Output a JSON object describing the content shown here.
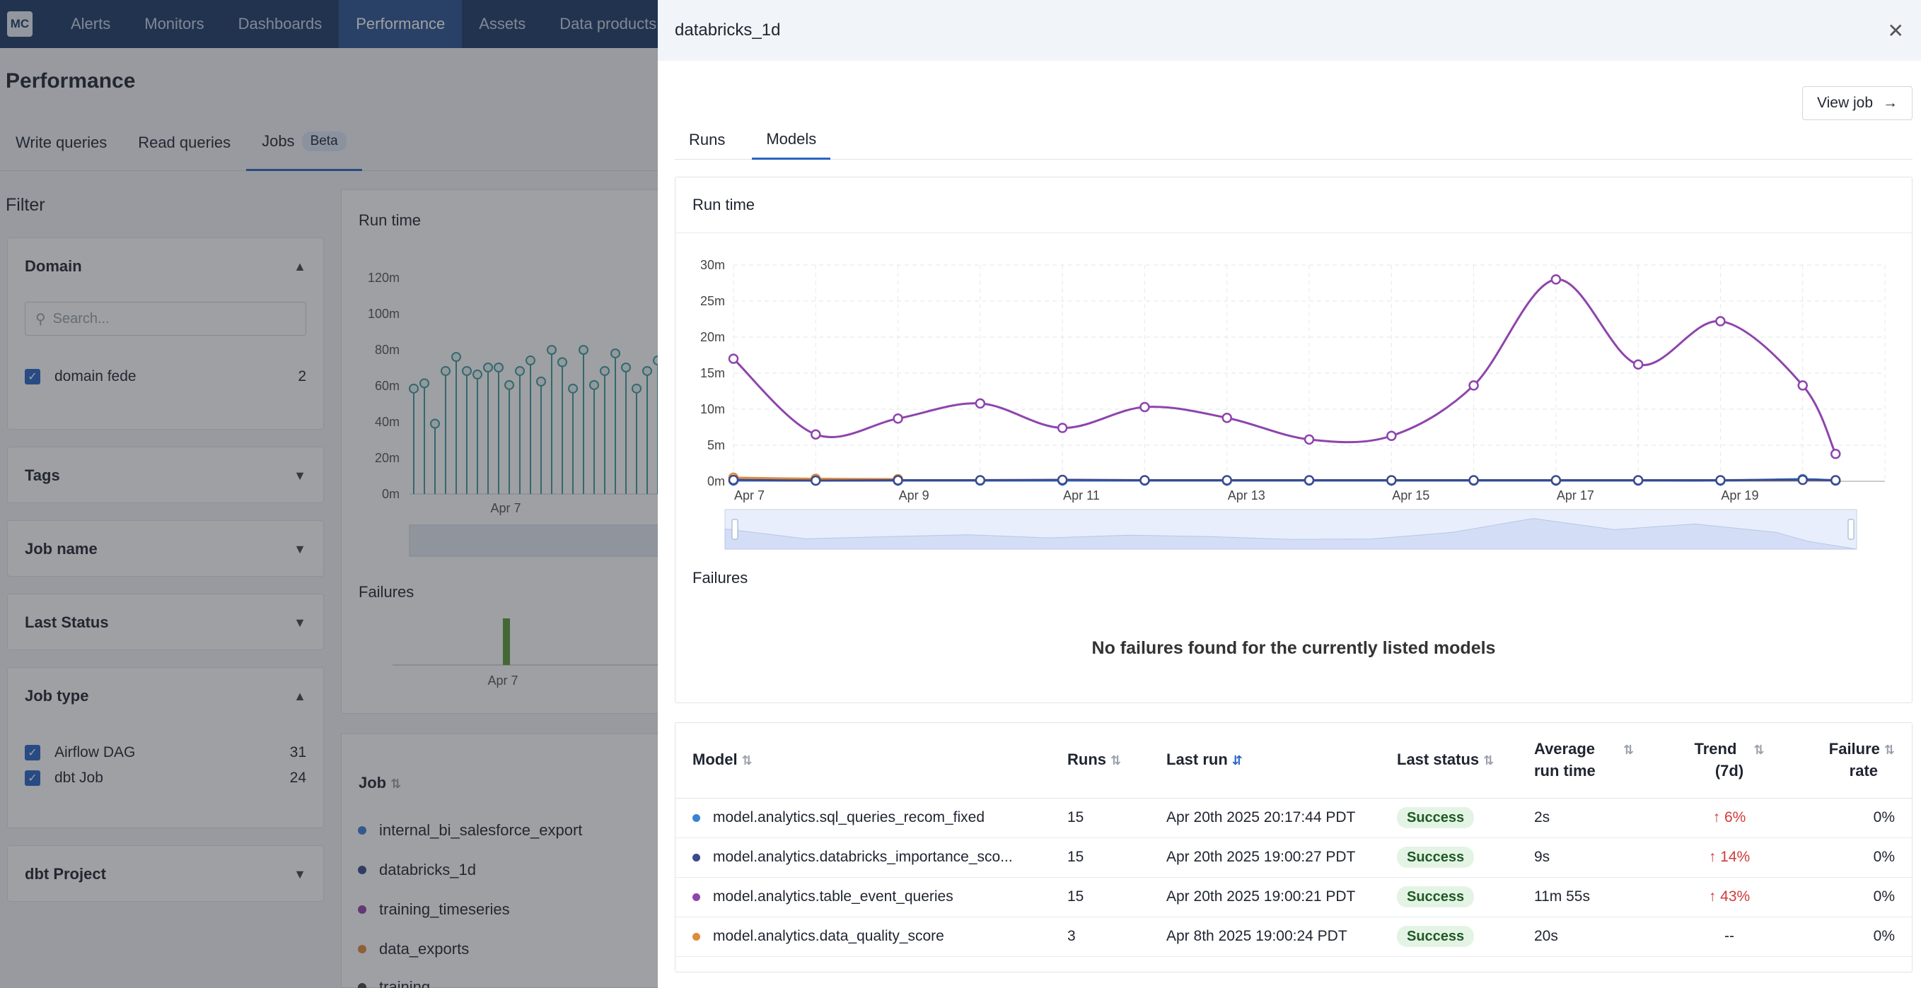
{
  "app": {
    "logo": "MC",
    "nav": [
      "Alerts",
      "Monitors",
      "Dashboards",
      "Performance",
      "Assets",
      "Data products"
    ],
    "page_title": "Performance",
    "subtabs": [
      "Write queries",
      "Read queries",
      "Jobs"
    ],
    "beta_badge": "Beta",
    "filter_title": "Filter",
    "filters": {
      "domain": {
        "title": "Domain",
        "search_placeholder": "Search...",
        "item_label": "domain fede",
        "item_count": "2"
      },
      "tags": "Tags",
      "job_name": "Job name",
      "last_status": "Last Status",
      "job_type": {
        "title": "Job type",
        "items": [
          {
            "label": "Airflow DAG",
            "count": "31"
          },
          {
            "label": "dbt Job",
            "count": "24"
          }
        ]
      },
      "dbt_project": "dbt Project"
    },
    "main": {
      "runtime_title": "Run time",
      "failures_title": "Failures",
      "x_tick": "Apr 7",
      "y_ticks": [
        "120m",
        "100m",
        "80m",
        "60m",
        "40m",
        "20m",
        "0m"
      ],
      "job_header": "Job",
      "jobs": [
        "internal_bi_salesforce_export",
        "databricks_1d",
        "training_timeseries",
        "data_exports",
        "training"
      ]
    }
  },
  "drawer": {
    "title": "databricks_1d",
    "view_job_label": "View job",
    "tabs": [
      "Runs",
      "Models"
    ],
    "runtime_title": "Run time",
    "failures_title": "Failures",
    "no_failures_text": "No failures found for the currently listed models",
    "table": {
      "headers": {
        "model": "Model",
        "runs": "Runs",
        "last_run": "Last run",
        "last_status": "Last status",
        "avg_runtime_1": "Average",
        "avg_runtime_2": "run time",
        "trend_1": "Trend",
        "trend_2": "(7d)",
        "failure_1": "Failure",
        "failure_2": "rate"
      },
      "rows": [
        {
          "model": "model.analytics.sql_queries_recom_fixed",
          "runs": "15",
          "last_run": "Apr 20th 2025 20:17:44 PDT",
          "status": "Success",
          "avg": "2s",
          "trend": "↑ 6%",
          "failure": "0%"
        },
        {
          "model": "model.analytics.databricks_importance_sco...",
          "runs": "15",
          "last_run": "Apr 20th 2025 19:00:27 PDT",
          "status": "Success",
          "avg": "9s",
          "trend": "↑ 14%",
          "failure": "0%"
        },
        {
          "model": "model.analytics.table_event_queries",
          "runs": "15",
          "last_run": "Apr 20th 2025 19:00:21 PDT",
          "status": "Success",
          "avg": "11m 55s",
          "trend": "↑ 43%",
          "failure": "0%"
        },
        {
          "model": "model.analytics.data_quality_score",
          "runs": "3",
          "last_run": "Apr 8th 2025 19:00:24 PDT",
          "status": "Success",
          "avg": "20s",
          "trend": "--",
          "failure": "0%"
        }
      ]
    }
  },
  "colors": {
    "accent": "#2a64c5",
    "purple": "#8e44ad",
    "blue": "#3b82d6",
    "navy": "#3a4a8c",
    "orange": "#e08a3c",
    "teal": "#3e9aa0"
  },
  "chart_data": {
    "type": "line",
    "title": "Run time",
    "x_ticks": [
      "Apr 7",
      "Apr 9",
      "Apr 11",
      "Apr 13",
      "Apr 15",
      "Apr 17",
      "Apr 19"
    ],
    "y_ticks": [
      "30m",
      "25m",
      "20m",
      "15m",
      "10m",
      "5m",
      "0m"
    ],
    "ylim": [
      0,
      30
    ],
    "xlim": [
      0,
      14
    ],
    "series": [
      {
        "name": "model.analytics.table_event_queries",
        "color": "#8e44ad",
        "x": [
          0,
          1,
          2,
          3,
          4,
          5,
          6,
          7,
          8,
          9,
          10,
          11,
          12,
          13,
          13.4
        ],
        "y": [
          17,
          6.5,
          8.7,
          10.8,
          7.4,
          10.3,
          8.8,
          5.8,
          6.3,
          13.3,
          28,
          16.2,
          22.2,
          13.3,
          3.8
        ]
      },
      {
        "name": "model.analytics.sql_queries_recom_fixed",
        "color": "#3b82d6",
        "x": [
          0,
          1,
          2,
          3,
          4,
          5,
          6,
          7,
          8,
          9,
          10,
          11,
          12,
          13,
          13.4
        ],
        "y": [
          0.1,
          0.1,
          0.1,
          0.1,
          0.1,
          0.1,
          0.1,
          0.1,
          0.1,
          0.1,
          0.1,
          0.1,
          0.1,
          0.3,
          0.1
        ]
      },
      {
        "name": "model.analytics.databricks_importance_score",
        "color": "#3a4a8c",
        "x": [
          0,
          1,
          2,
          3,
          4,
          5,
          6,
          7,
          8,
          9,
          10,
          11,
          12,
          13,
          13.4
        ],
        "y": [
          0.2,
          0.1,
          0.15,
          0.15,
          0.2,
          0.15,
          0.15,
          0.15,
          0.15,
          0.15,
          0.15,
          0.15,
          0.15,
          0.2,
          0.15
        ]
      },
      {
        "name": "model.analytics.data_quality_score",
        "color": "#e08a3c",
        "x": [
          0,
          1,
          2
        ],
        "y": [
          0.5,
          0.35,
          0.3
        ]
      }
    ]
  }
}
